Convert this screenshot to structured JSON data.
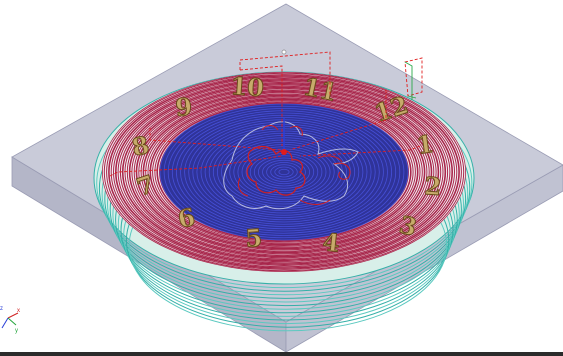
{
  "viewport": {
    "view": "isometric",
    "background": "#ffffff"
  },
  "stock": {
    "top_color": "#c9cbd9",
    "side_left_color": "#b4b6c8",
    "side_right_color": "#c0c2d2",
    "edge_color": "#9a9cb4"
  },
  "toolpaths": {
    "outer_colors": [
      "#35b0a8",
      "#5bc9c0"
    ],
    "dial_ring_color": "#a8264b",
    "center_fill": "#2f3399",
    "center_pass_color": "#4650d8",
    "relief_color": "#d41f1f",
    "link_color": "#e01c1c",
    "relief_outline_color": "#b8bbe0"
  },
  "clock": {
    "numerals": [
      "12",
      "1",
      "2",
      "3",
      "4",
      "5",
      "6",
      "7",
      "8",
      "9",
      "10",
      "11"
    ],
    "numeral_fill": "#c7ab6b",
    "numeral_stroke": "#6a4a1c"
  },
  "triad": {
    "labels": [
      "x",
      "y",
      "z"
    ],
    "colors": [
      "#d02222",
      "#22a43a",
      "#2a3fd8"
    ]
  }
}
